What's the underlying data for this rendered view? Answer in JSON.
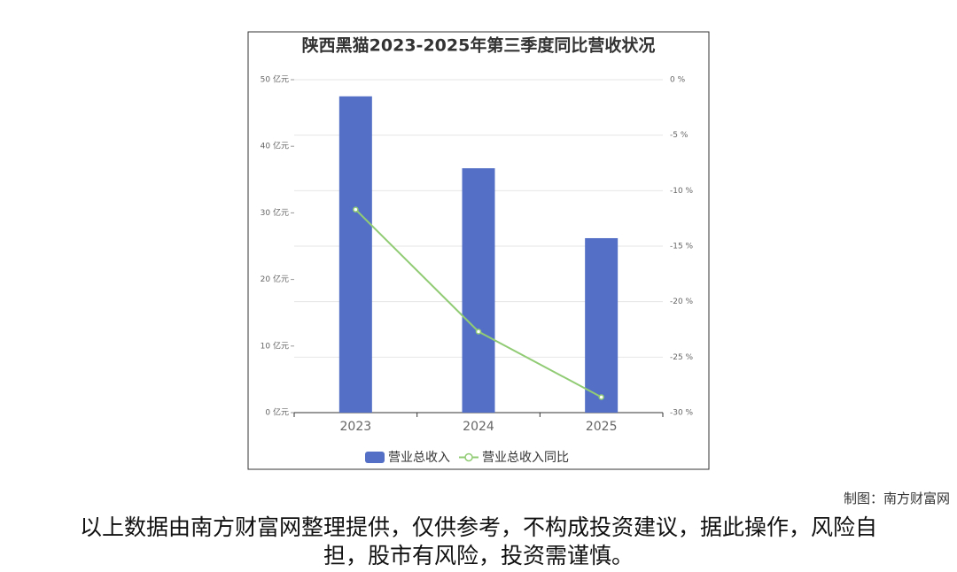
{
  "chart_data": {
    "type": "bar",
    "title": "陕西黑猫2023-2025年第三季度同比营收状况",
    "categories": [
      "2023",
      "2024",
      "2025"
    ],
    "series": [
      {
        "name": "营业总收入",
        "type": "bar",
        "color": "#5470c6",
        "values": [
          47.5,
          36.7,
          26.2
        ]
      },
      {
        "name": "营业总收入同比",
        "type": "line",
        "color": "#91cc75",
        "axis": "y2",
        "values": [
          -11.7,
          -22.7,
          -28.6
        ]
      }
    ],
    "ylim": [
      0,
      50
    ],
    "yticks": [
      {
        "value": 0,
        "label": "0 亿元"
      },
      {
        "value": 10,
        "label": "10 亿元"
      },
      {
        "value": 20,
        "label": "20 亿元"
      },
      {
        "value": 30,
        "label": "30 亿元"
      },
      {
        "value": 40,
        "label": "40 亿元"
      },
      {
        "value": 50,
        "label": "50 亿元"
      }
    ],
    "y2lim": [
      -30,
      0
    ],
    "y2ticks": [
      {
        "value": -30,
        "label": "-30 %"
      },
      {
        "value": -25,
        "label": "-25 %"
      },
      {
        "value": -20,
        "label": "-20 %"
      },
      {
        "value": -15,
        "label": "-15 %"
      },
      {
        "value": -10,
        "label": "-10 %"
      },
      {
        "value": -5,
        "label": "-5 %"
      },
      {
        "value": 0,
        "label": "0 %"
      }
    ],
    "grid": true,
    "legend": "bottom"
  },
  "credit": "制图：南方财富网",
  "note": "以上数据由南方财富网整理提供，仅供参考，不构成投资建议，据此操作，风险自担，股市有风险，投资需谨慎。"
}
